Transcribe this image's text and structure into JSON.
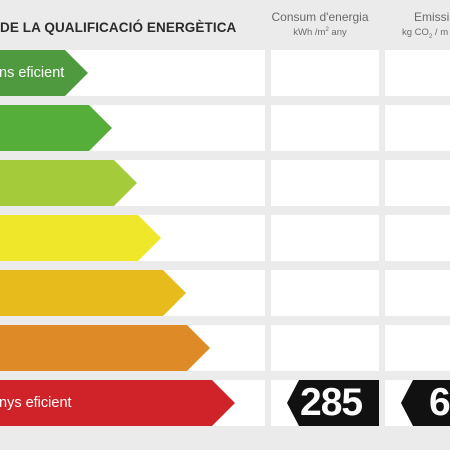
{
  "title": "DE LA QUALIFICACIÓ ENERGÈTICA",
  "columns": {
    "consum": {
      "label": "Consum d'energia",
      "unit_pre": "kWh /m",
      "unit_sup": "2",
      "unit_post": " any"
    },
    "emissions": {
      "label": "Emissio",
      "unit_pre": "kg CO",
      "unit_sub": "2",
      "unit_post": " / m"
    }
  },
  "bands": [
    {
      "label": "més eficient",
      "visible_label": "ns eficient",
      "color": "#4f9a3f"
    },
    {
      "label": "",
      "color": "#56ae3a"
    },
    {
      "label": "",
      "color": "#a4cc3a"
    },
    {
      "label": "",
      "color": "#efe82a"
    },
    {
      "label": "",
      "color": "#e8bb1c"
    },
    {
      "label": "",
      "color": "#de8a26"
    },
    {
      "label": "menys eficient",
      "visible_label": "nys eficient",
      "color": "#cf2329"
    }
  ],
  "rating": {
    "consum_value": "285",
    "emissions_value": "6"
  }
}
